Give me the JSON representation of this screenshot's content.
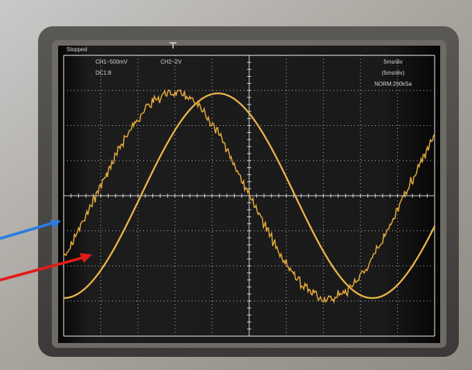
{
  "screen": {
    "status": "Stopped",
    "ch1": "CH1~500mV",
    "ch2": "CH2~2V",
    "coupling": "DC1:8",
    "timebase": "5ms/div",
    "timebase_note": "(5ms/div)",
    "sampling": "NORM:200kSa"
  }
}
